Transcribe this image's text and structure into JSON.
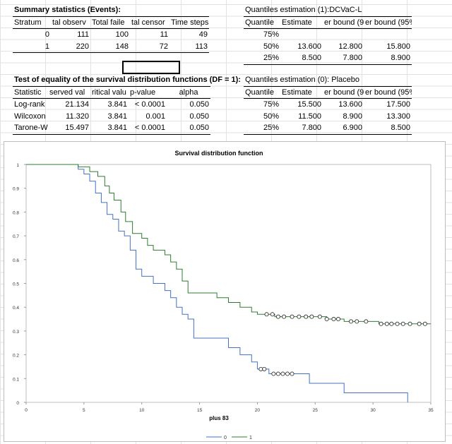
{
  "summary": {
    "title": "Summary statistics (Events):",
    "headers": [
      "Stratum",
      "tal observ",
      "Total faile",
      "tal censor",
      "Time steps"
    ],
    "rows": [
      [
        "0",
        "111",
        "100",
        "11",
        "49"
      ],
      [
        "1",
        "220",
        "148",
        "72",
        "113"
      ]
    ]
  },
  "quantiles1": {
    "title": "Quantiles estimation (1):DCVaC-L",
    "headers": [
      "Quantile",
      "Estimate",
      "er bound (9",
      "er bound (95%)"
    ],
    "rows": [
      [
        "75%",
        "",
        "",
        ""
      ],
      [
        "50%",
        "13.600",
        "12.800",
        "15.800"
      ],
      [
        "25%",
        "8.500",
        "7.800",
        "8.900"
      ]
    ]
  },
  "test": {
    "title": "Test of equality of the survival distribution functions (DF = 1):",
    "headers": [
      "Statistic",
      "served val",
      "ritical valu",
      "p-value",
      "alpha"
    ],
    "rows": [
      [
        "Log-rank",
        "21.134",
        "3.841",
        "< 0.0001",
        "0.050"
      ],
      [
        "Wilcoxon",
        "11.320",
        "3.841",
        "0.001",
        "0.050"
      ],
      [
        "Tarone-W",
        "15.497",
        "3.841",
        "< 0.0001",
        "0.050"
      ]
    ]
  },
  "quantiles0": {
    "title": "Quantiles estimation (0): Placebo",
    "headers": [
      "Quantile",
      "Estimate",
      "er bound (9",
      "er bound (95%)"
    ],
    "rows": [
      [
        "75%",
        "15.500",
        "13.600",
        "17.500"
      ],
      [
        "50%",
        "11.500",
        "8.900",
        "13.300"
      ],
      [
        "25%",
        "7.800",
        "6.900",
        "8.500"
      ]
    ]
  },
  "chart_data": {
    "type": "line",
    "title": "Survival distribution function",
    "xlabel": "plus 83",
    "ylabel": "",
    "xlim": [
      0,
      35
    ],
    "ylim": [
      0,
      1
    ],
    "x_ticks": [
      "0",
      "5",
      "10",
      "15",
      "20",
      "25",
      "30",
      "35"
    ],
    "y_ticks": [
      "0",
      "0.1",
      "0.2",
      "0.3",
      "0.4",
      "0.5",
      "0.6",
      "0.7",
      "0.8",
      "0.9",
      "1"
    ],
    "grid": false,
    "legend_position": "bottom",
    "series": [
      {
        "name": "0",
        "color": "#4472c4",
        "steps": [
          [
            0,
            1.0
          ],
          [
            4.5,
            0.98
          ],
          [
            5.0,
            0.96
          ],
          [
            5.5,
            0.93
          ],
          [
            6.0,
            0.88
          ],
          [
            6.5,
            0.84
          ],
          [
            7.0,
            0.79
          ],
          [
            7.5,
            0.77
          ],
          [
            8.0,
            0.72
          ],
          [
            8.5,
            0.7
          ],
          [
            9.0,
            0.64
          ],
          [
            9.5,
            0.56
          ],
          [
            10.0,
            0.53
          ],
          [
            11.0,
            0.5
          ],
          [
            12.0,
            0.47
          ],
          [
            12.5,
            0.44
          ],
          [
            13.0,
            0.4
          ],
          [
            13.5,
            0.37
          ],
          [
            14.0,
            0.35
          ],
          [
            14.5,
            0.27
          ],
          [
            15.0,
            0.27
          ],
          [
            17.5,
            0.23
          ],
          [
            18.5,
            0.2
          ],
          [
            19.5,
            0.17
          ],
          [
            20.0,
            0.14
          ],
          [
            21.0,
            0.12
          ],
          [
            23.5,
            0.12
          ],
          [
            24.5,
            0.08
          ],
          [
            27.5,
            0.04
          ],
          [
            33.0,
            0.0
          ]
        ],
        "censored": [
          20.3,
          20.6,
          21.4,
          21.8,
          22.2,
          22.6,
          23.0
        ]
      },
      {
        "name": "1",
        "color": "#2e7d32",
        "steps": [
          [
            0,
            1.0
          ],
          [
            4.5,
            0.99
          ],
          [
            5.5,
            0.97
          ],
          [
            6.2,
            0.95
          ],
          [
            6.8,
            0.91
          ],
          [
            7.2,
            0.88
          ],
          [
            7.6,
            0.85
          ],
          [
            8.2,
            0.8
          ],
          [
            8.6,
            0.76
          ],
          [
            9.2,
            0.71
          ],
          [
            10.0,
            0.69
          ],
          [
            10.5,
            0.66
          ],
          [
            11.0,
            0.64
          ],
          [
            12.0,
            0.62
          ],
          [
            12.5,
            0.59
          ],
          [
            13.0,
            0.56
          ],
          [
            13.5,
            0.51
          ],
          [
            14.0,
            0.46
          ],
          [
            16.5,
            0.44
          ],
          [
            17.5,
            0.42
          ],
          [
            18.5,
            0.4
          ],
          [
            19.5,
            0.38
          ],
          [
            20.0,
            0.37
          ],
          [
            21.5,
            0.36
          ],
          [
            26.0,
            0.35
          ],
          [
            27.5,
            0.34
          ],
          [
            30.5,
            0.33
          ],
          [
            35.0,
            0.33
          ]
        ],
        "censored": [
          20.8,
          21.3,
          21.8,
          22.3,
          23.0,
          23.6,
          24.2,
          24.7,
          25.4,
          26.0,
          26.6,
          27.0,
          28.1,
          28.6,
          29.4,
          30.7,
          31.2,
          31.6,
          32.1,
          32.6,
          33.2,
          34.0,
          34.5
        ]
      }
    ]
  }
}
